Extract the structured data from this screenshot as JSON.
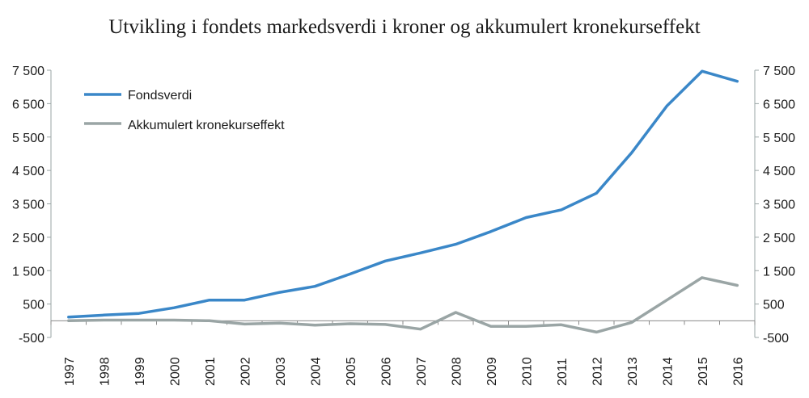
{
  "chart_data": {
    "type": "line",
    "title": "Utvikling i fondets markedsverdi i kroner og akkumulert kronekurseffekt",
    "xlabel": "",
    "ylabel": "",
    "categories": [
      "1997",
      "1998",
      "1999",
      "2000",
      "2001",
      "2002",
      "2003",
      "2004",
      "2005",
      "2006",
      "2007",
      "2008",
      "2009",
      "2010",
      "2011",
      "2012",
      "2013",
      "2014",
      "2015",
      "2016"
    ],
    "yticks": [
      -500,
      500,
      1500,
      2500,
      3500,
      4500,
      5500,
      6500,
      7500
    ],
    "ytick_labels": [
      "-500",
      "500",
      "1 500",
      "2 500",
      "3 500",
      "4 500",
      "5 500",
      "6 500",
      "7 500"
    ],
    "ylim": [
      -500,
      7500
    ],
    "y_right_axis": true,
    "legend_position": "top-left",
    "grid": false,
    "series": [
      {
        "name": "Fondsverdi",
        "color": "#3a87c8",
        "values": [
          110,
          170,
          220,
          390,
          620,
          620,
          850,
          1030,
          1400,
          1790,
          2030,
          2290,
          2670,
          3090,
          3320,
          3820,
          5030,
          6430,
          7470,
          7170
        ]
      },
      {
        "name": "Akkumulert kronekurseffekt",
        "color": "#9aa5a5",
        "values": [
          0,
          20,
          20,
          20,
          0,
          -100,
          -70,
          -130,
          -90,
          -110,
          -250,
          250,
          -170,
          -170,
          -120,
          -340,
          -50,
          620,
          1290,
          1060
        ]
      }
    ]
  }
}
